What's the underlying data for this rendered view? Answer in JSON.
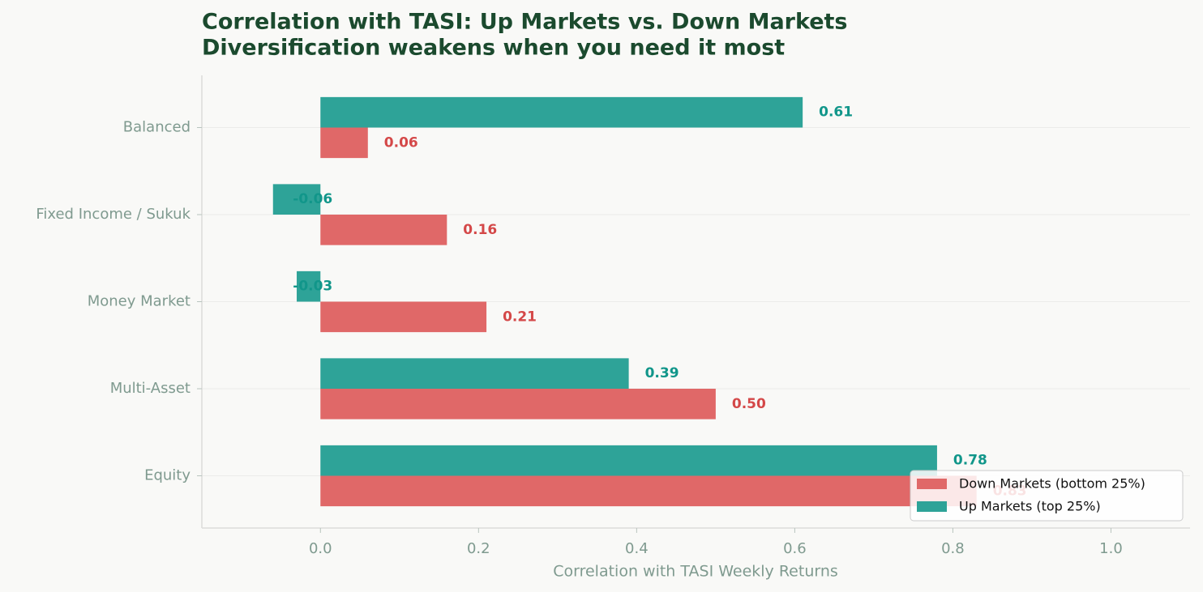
{
  "chart_data": {
    "type": "grouped-horizontal-bar",
    "title": "Correlation with TASI: Up Markets vs. Down Markets",
    "subtitle": "Diversification weakens when you need it most",
    "x_label": "Correlation with TASI Weekly Returns",
    "categories": [
      "Balanced",
      "Fixed Income / Sukuk",
      "Money Market",
      "Multi-Asset",
      "Equity"
    ],
    "series": [
      {
        "name": "Down Markets (bottom 25%)",
        "color": "#e06868",
        "label_color": "#d44848",
        "values": [
          0.06,
          0.16,
          0.21,
          0.5,
          0.83
        ],
        "value_labels": [
          "0.06",
          "0.16",
          "0.21",
          "0.50",
          "0.83"
        ]
      },
      {
        "name": "Up Markets (top 25%)",
        "color": "#2ea398",
        "label_color": "#11968a",
        "values": [
          0.61,
          -0.06,
          -0.03,
          0.39,
          0.78
        ],
        "value_labels": [
          "0.61",
          "-0.06",
          "-0.03",
          "0.39",
          "0.78"
        ]
      }
    ],
    "xlim": [
      -0.15,
      1.1
    ],
    "xticks": [
      {
        "value": 0,
        "label": "0.0"
      },
      {
        "value": 0.2,
        "label": "0.2"
      },
      {
        "value": 0.4,
        "label": "0.4"
      },
      {
        "value": 0.6,
        "label": "0.6"
      },
      {
        "value": 0.8,
        "label": "0.8"
      },
      {
        "value": 1,
        "label": "1.0"
      }
    ],
    "grid": true,
    "legend": "lower right"
  }
}
